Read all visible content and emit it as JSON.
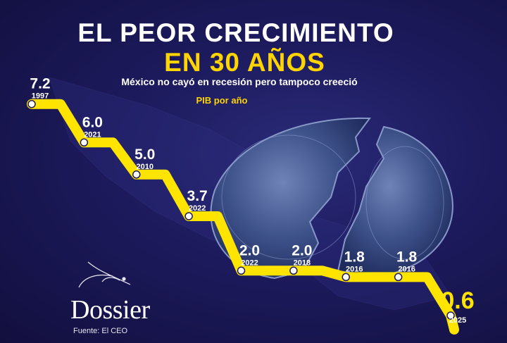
{
  "title_line1": "EL PEOR CRECIMIENTO",
  "title_line2": "EN 30 AÑOS",
  "subtitle": "México no cayó en recesión pero tampoco creeció",
  "brand": "Dossier",
  "source": "Fuente: El CEO",
  "colors": {
    "background": "#1c1a5c",
    "line": "#ffe400",
    "title_accent": "#ffd400",
    "text": "#ffffff",
    "point": "#ffffff"
  },
  "chart_data": {
    "type": "line",
    "title": "PIB por año",
    "x": [
      "1997",
      "2021",
      "2010",
      "2022",
      "2022",
      "2018",
      "2016",
      "2016",
      "2025"
    ],
    "values": [
      7.2,
      6.0,
      5.0,
      3.7,
      2.0,
      2.0,
      1.8,
      1.8,
      0.6
    ],
    "value_labels": [
      "7.2",
      "6.0",
      "5.0",
      "3.7",
      "2.0",
      "2.0",
      "1.8",
      "1.8",
      "0.6"
    ],
    "year_labels": [
      "1997",
      "2021",
      "2010",
      "2022",
      "2022",
      "2018",
      "2016",
      "2016",
      "2025"
    ],
    "xlabel": "",
    "ylabel": "",
    "grid": false,
    "legend": "none"
  }
}
